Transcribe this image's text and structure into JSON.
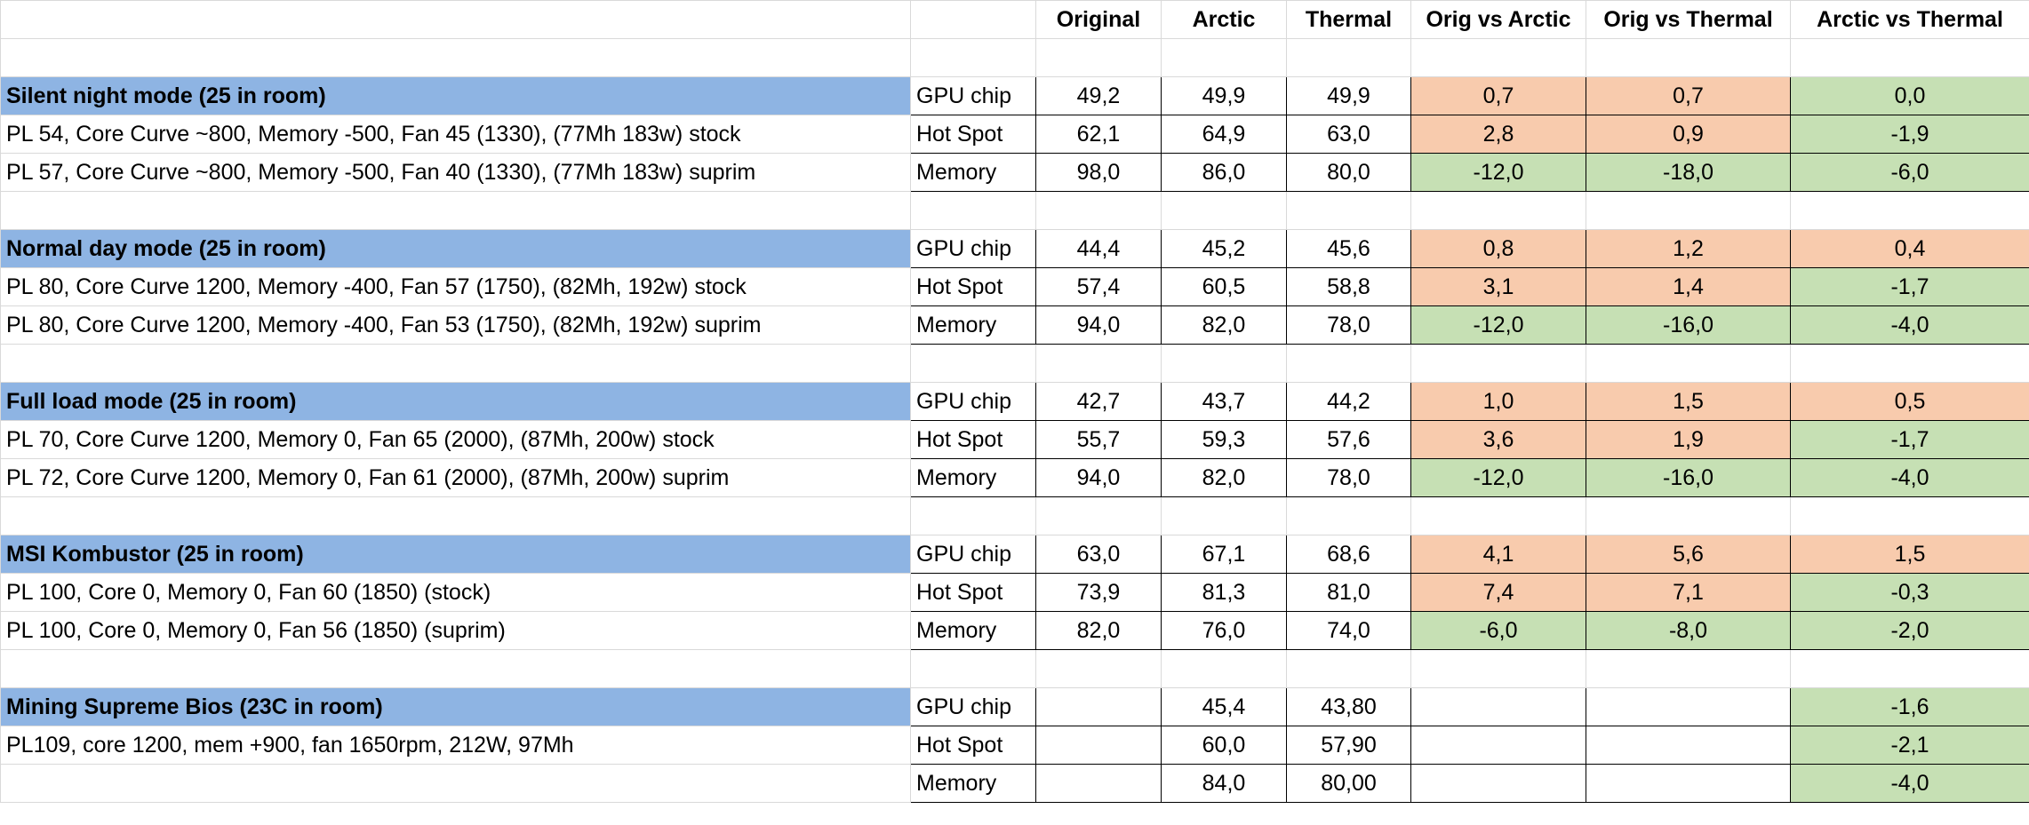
{
  "header": {
    "columns": [
      "Original",
      "Arctic",
      "Thermal",
      "Orig vs Arctic",
      "Orig vs Thermal",
      "Arctic vs Thermal"
    ]
  },
  "colors": {
    "up": "#f8cbad",
    "down": "#c6e0b4",
    "section": "#8eb4e3"
  },
  "sections": [
    {
      "title": "Silent night mode (25 in room)",
      "notes": [
        "PL 54, Core Curve ~800, Memory -500, Fan 45 (1330), (77Mh 183w) stock",
        "PL 57, Core Curve ~800, Memory -500, Fan 40 (1330), (77Mh 183w) suprim"
      ],
      "rows": [
        {
          "metric": "GPU chip",
          "values": [
            "49,2",
            "49,9",
            "49,9",
            "0,7",
            "0,7",
            "0,0"
          ],
          "fills": [
            "up",
            "up",
            "down"
          ]
        },
        {
          "metric": "Hot Spot",
          "values": [
            "62,1",
            "64,9",
            "63,0",
            "2,8",
            "0,9",
            "-1,9"
          ],
          "fills": [
            "up",
            "up",
            "down"
          ]
        },
        {
          "metric": "Memory",
          "values": [
            "98,0",
            "86,0",
            "80,0",
            "-12,0",
            "-18,0",
            "-6,0"
          ],
          "fills": [
            "down",
            "down",
            "down"
          ]
        }
      ]
    },
    {
      "title": "Normal day mode (25 in room)",
      "notes": [
        "PL 80, Core Curve 1200, Memory -400, Fan 57 (1750), (82Mh, 192w) stock",
        "PL 80, Core Curve 1200, Memory -400, Fan 53 (1750), (82Mh, 192w) suprim"
      ],
      "rows": [
        {
          "metric": "GPU chip",
          "values": [
            "44,4",
            "45,2",
            "45,6",
            "0,8",
            "1,2",
            "0,4"
          ],
          "fills": [
            "up",
            "up",
            "up"
          ]
        },
        {
          "metric": "Hot Spot",
          "values": [
            "57,4",
            "60,5",
            "58,8",
            "3,1",
            "1,4",
            "-1,7"
          ],
          "fills": [
            "up",
            "up",
            "down"
          ]
        },
        {
          "metric": "Memory",
          "values": [
            "94,0",
            "82,0",
            "78,0",
            "-12,0",
            "-16,0",
            "-4,0"
          ],
          "fills": [
            "down",
            "down",
            "down"
          ]
        }
      ]
    },
    {
      "title": "Full load mode (25 in room)",
      "notes": [
        "PL 70, Core Curve 1200, Memory 0, Fan 65 (2000), (87Mh, 200w) stock",
        "PL 72, Core Curve 1200, Memory 0, Fan 61 (2000), (87Mh, 200w) suprim"
      ],
      "rows": [
        {
          "metric": "GPU chip",
          "values": [
            "42,7",
            "43,7",
            "44,2",
            "1,0",
            "1,5",
            "0,5"
          ],
          "fills": [
            "up",
            "up",
            "up"
          ]
        },
        {
          "metric": "Hot Spot",
          "values": [
            "55,7",
            "59,3",
            "57,6",
            "3,6",
            "1,9",
            "-1,7"
          ],
          "fills": [
            "up",
            "up",
            "down"
          ]
        },
        {
          "metric": "Memory",
          "values": [
            "94,0",
            "82,0",
            "78,0",
            "-12,0",
            "-16,0",
            "-4,0"
          ],
          "fills": [
            "down",
            "down",
            "down"
          ]
        }
      ]
    },
    {
      "title": "MSI Kombustor (25 in room)",
      "notes": [
        "PL 100, Core 0, Memory 0, Fan 60 (1850) (stock)",
        "PL 100, Core 0, Memory 0, Fan 56 (1850) (suprim)"
      ],
      "rows": [
        {
          "metric": "GPU chip",
          "values": [
            "63,0",
            "67,1",
            "68,6",
            "4,1",
            "5,6",
            "1,5"
          ],
          "fills": [
            "up",
            "up",
            "up"
          ]
        },
        {
          "metric": "Hot Spot",
          "values": [
            "73,9",
            "81,3",
            "81,0",
            "7,4",
            "7,1",
            "-0,3"
          ],
          "fills": [
            "up",
            "up",
            "down"
          ]
        },
        {
          "metric": "Memory",
          "values": [
            "82,0",
            "76,0",
            "74,0",
            "-6,0",
            "-8,0",
            "-2,0"
          ],
          "fills": [
            "down",
            "down",
            "down"
          ]
        }
      ]
    },
    {
      "title": "Mining Supreme Bios (23C in room)",
      "notes": [
        "PL109, core 1200, mem +900, fan 1650rpm, 212W, 97Mh"
      ],
      "rows": [
        {
          "metric": "GPU chip",
          "values": [
            null,
            "45,4",
            "43,80",
            null,
            null,
            "-1,6"
          ],
          "fills": [
            null,
            null,
            "down"
          ]
        },
        {
          "metric": "Hot Spot",
          "values": [
            null,
            "60,0",
            "57,90",
            null,
            null,
            "-2,1"
          ],
          "fills": [
            null,
            null,
            "down"
          ]
        },
        {
          "metric": "Memory",
          "values": [
            null,
            "84,0",
            "80,00",
            null,
            null,
            "-4,0"
          ],
          "fills": [
            null,
            null,
            "down"
          ]
        }
      ]
    }
  ]
}
